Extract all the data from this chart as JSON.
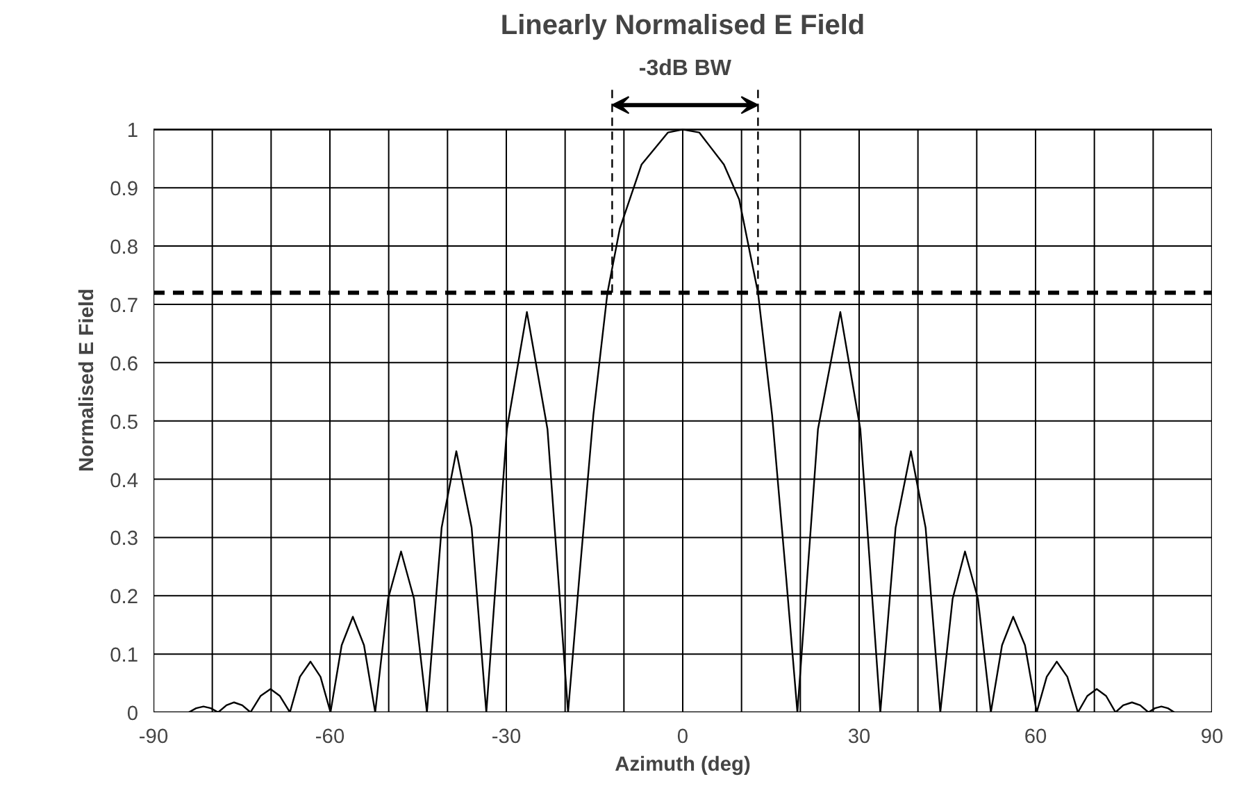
{
  "chart_data": {
    "type": "line",
    "title": "Linearly Normalised E Field",
    "xlabel": "Azimuth (deg)",
    "ylabel": "Normalised E Field",
    "x": [
      -84,
      -82.75,
      -81.5,
      -80.25,
      -79,
      -77.6,
      -76.3,
      -74.9,
      -73.5,
      -71.8,
      -70.1,
      -68.5,
      -66.8,
      -65.1,
      -63.3,
      -61.6,
      -59.9,
      -58,
      -56.1,
      -54.2,
      -52.3,
      -50.1,
      -47.9,
      -45.7,
      -43.5,
      -41,
      -38.5,
      -35.9,
      -33.4,
      -29.9,
      -26.5,
      -23,
      -19.5,
      -17.6,
      -15.2,
      -12.8,
      -10.7,
      -7,
      -2.5,
      0,
      2.8,
      7,
      9.6,
      12.8,
      15.2,
      17.6,
      19.5,
      23,
      26.8,
      30.2,
      33.6,
      36.2,
      38.8,
      41.3,
      43.8,
      45.9,
      48,
      50.2,
      52.4,
      54.3,
      56.2,
      58.2,
      60.2,
      61.9,
      63.6,
      65.4,
      67.2,
      68.8,
      70.4,
      72,
      73.6,
      74.9,
      76.4,
      77.8,
      79.2,
      80.3,
      81.4,
      82.5,
      83.6
    ],
    "series": [
      {
        "color": "#000000",
        "values": [
          0,
          0.007,
          0.01,
          0.007,
          0,
          0.012,
          0.017,
          0.012,
          0,
          0.028,
          0.04,
          0.028,
          0,
          0.061,
          0.087,
          0.061,
          0,
          0.115,
          0.164,
          0.115,
          0,
          0.195,
          0.276,
          0.195,
          0,
          0.317,
          0.448,
          0.317,
          0,
          0.486,
          0.687,
          0.486,
          0,
          0.23,
          0.51,
          0.72,
          0.83,
          0.94,
          0.995,
          1,
          0.995,
          0.94,
          0.88,
          0.72,
          0.51,
          0.23,
          0,
          0.486,
          0.687,
          0.486,
          0,
          0.317,
          0.448,
          0.317,
          0,
          0.195,
          0.276,
          0.195,
          0,
          0.115,
          0.164,
          0.115,
          0,
          0.061,
          0.087,
          0.061,
          0,
          0.028,
          0.04,
          0.028,
          0,
          0.012,
          0.017,
          0.012,
          0,
          0.007,
          0.01,
          0.007,
          0
        ]
      }
    ],
    "xlim": [
      -90,
      90
    ],
    "xticks": [
      -90,
      -60,
      -30,
      0,
      30,
      60,
      90
    ],
    "ylim": [
      0,
      1
    ],
    "yticks": [
      0,
      0.1,
      0.2,
      0.3,
      0.4,
      0.5,
      0.6,
      0.7,
      0.8,
      0.9,
      1
    ],
    "grid": true,
    "marker": "none",
    "line_style": "solid",
    "ref_lines": [
      {
        "axis": "y",
        "value": 0.72,
        "line_style": "dashed",
        "color": "#000000"
      },
      {
        "axis": "x",
        "value": -12,
        "line_style": "dashed",
        "color": "#000000"
      },
      {
        "axis": "x",
        "value": 12.8,
        "line_style": "dashed",
        "color": "#000000"
      }
    ],
    "annotations": [
      "-3dB BW"
    ]
  }
}
